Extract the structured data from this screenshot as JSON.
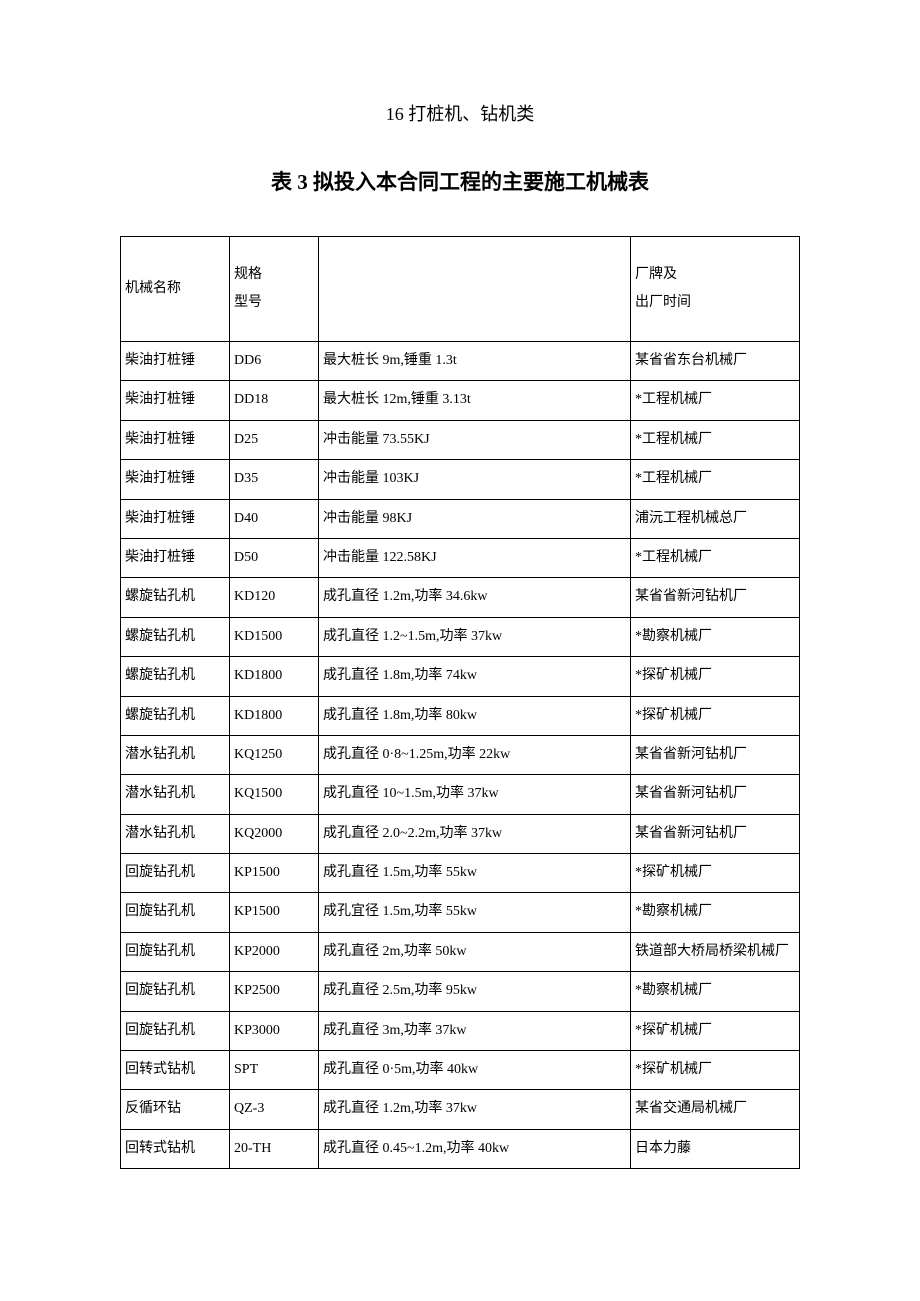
{
  "section_heading": "16 打桩机、钻机类",
  "table_title": "表 3 拟投入本合同工程的主要施工机械表",
  "table": {
    "columns": {
      "name": "机械名称",
      "model": "规格\n型号",
      "spec": "",
      "mfr": "厂牌及\n出厂时间"
    },
    "rows": [
      {
        "name": "柴油打桩锤",
        "model": "DD6",
        "spec": "最大桩长 9m,锤重 1.3t",
        "mfr": "某省省东台机械厂"
      },
      {
        "name": "柴油打桩锤",
        "model": "DD18",
        "spec": "最大桩长 12m,锤重 3.13t",
        "mfr": "*工程机械厂"
      },
      {
        "name": "柴油打桩锤",
        "model": "D25",
        "spec": "冲击能量 73.55KJ",
        "mfr": "*工程机械厂"
      },
      {
        "name": "柴油打桩锤",
        "model": "D35",
        "spec": "冲击能量 103KJ",
        "mfr": "*工程机械厂"
      },
      {
        "name": "柴油打桩锤",
        "model": "D40",
        "spec": "冲击能量 98KJ",
        "mfr": "浦沅工程机械总厂"
      },
      {
        "name": "柴油打桩锤",
        "model": "D50",
        "spec": "冲击能量 122.58KJ",
        "mfr": "*工程机械厂"
      },
      {
        "name": "螺旋钻孔机",
        "model": "KD120",
        "spec": "成孔直径 1.2m,功率 34.6kw",
        "mfr": "某省省新河钻机厂"
      },
      {
        "name": "螺旋钻孔机",
        "model": "KD1500",
        "spec": "成孔直径 1.2~1.5m,功率 37kw",
        "mfr": "*勘察机械厂"
      },
      {
        "name": "螺旋钻孔机",
        "model": "KD1800",
        "spec": "成孔直径 1.8m,功率 74kw",
        "mfr": "*探矿机械厂"
      },
      {
        "name": "螺旋钻孔机",
        "model": "KD1800",
        "spec": "成孔直径 1.8m,功率 80kw",
        "mfr": "*探矿机械厂"
      },
      {
        "name": "潜水钻孔机",
        "model": "KQ1250",
        "spec": "成孔直径 0·8~1.25m,功率 22kw",
        "mfr": "某省省新河钻机厂"
      },
      {
        "name": "潜水钻孔机",
        "model": "KQ1500",
        "spec": "成孔直径 10~1.5m,功率 37kw",
        "mfr": "某省省新河钻机厂"
      },
      {
        "name": "潜水钻孔机",
        "model": "KQ2000",
        "spec": "成孔直径 2.0~2.2m,功率 37kw",
        "mfr": "某省省新河钻机厂"
      },
      {
        "name": "回旋钻孔机",
        "model": "KP1500",
        "spec": "成孔直径 1.5m,功率 55kw",
        "mfr": "*探矿机械厂"
      },
      {
        "name": "回旋钻孔机",
        "model": "KP1500",
        "spec": "成孔宜径 1.5m,功率 55kw",
        "mfr": "*勘察机械厂"
      },
      {
        "name": "回旋钻孔机",
        "model": "KP2000",
        "spec": "成孔直径 2m,功率 50kw",
        "mfr": "铁道部大桥局桥梁机械厂"
      },
      {
        "name": "回旋钻孔机",
        "model": "KP2500",
        "spec": "成孔直径 2.5m,功率 95kw",
        "mfr": "*勘察机械厂"
      },
      {
        "name": "回旋钻孔机",
        "model": "KP3000",
        "spec": "成孔直径 3m,功率 37kw",
        "mfr": "*探矿机械厂"
      },
      {
        "name": "回转式钻机",
        "model": "SPT",
        "spec": "成孔直径 0·5m,功率 40kw",
        "mfr": "*探矿机械厂"
      },
      {
        "name": "反循环钻",
        "model": "QZ-3",
        "spec": "成孔直径 1.2m,功率 37kw",
        "mfr": "某省交通局机械厂"
      },
      {
        "name": "回转式钻机",
        "model": "20-TH",
        "spec": "成孔直径 0.45~1.2m,功率 40kw",
        "mfr": "日本力藤"
      }
    ]
  }
}
